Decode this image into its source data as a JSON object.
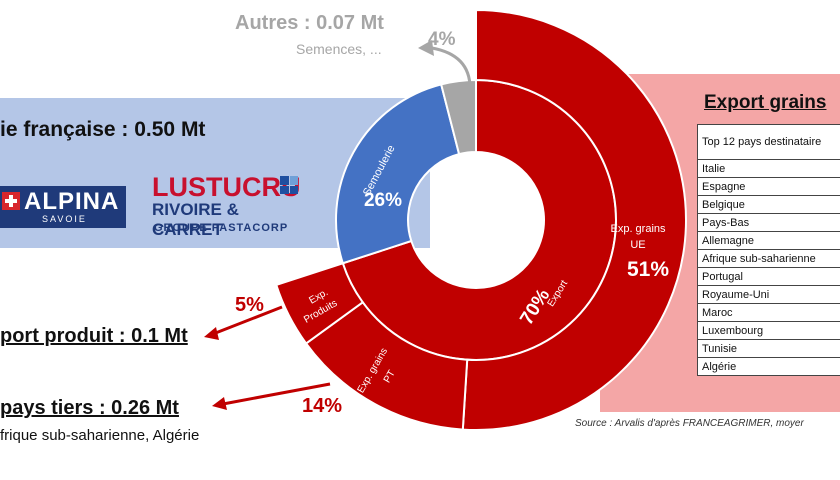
{
  "industry": {
    "label": "ie française : 0.50 Mt"
  },
  "brands": {
    "alpina": {
      "name": "ALPINA",
      "sub": "SAVOIE"
    },
    "lustucru": {
      "name": "LUSTUCRU",
      "line2": "RIVOIRE & CARRET",
      "line3": "GROUPE PASTACORP"
    }
  },
  "autres": {
    "label": "Autres : 0.07 Mt",
    "sub": "Semences, ..."
  },
  "exports": {
    "produit_label": "port produit : 0.1 Mt",
    "pays_tiers_label": "pays tiers : 0.26 Mt",
    "pays_tiers_sub": "frique sub-saharienne, Algérie"
  },
  "export_grains_panel": {
    "title": "Export grains",
    "table_header": "Top 12 pays destinataire",
    "countries": [
      "Italie",
      "Espagne",
      "Belgique",
      "Pays-Bas",
      "Allemagne",
      "Afrique sub-saharienne",
      "Portugal",
      "Royaume-Uni",
      "Maroc",
      "Luxembourg",
      "Tunisie",
      "Algérie"
    ]
  },
  "source": "Source : Arvalis d'après FRANCEAGRIMER, moyer",
  "colors": {
    "export": "#c00000",
    "semoulerie": "#4472c4",
    "autres": "#a6a6a6",
    "blue_band": "#b4c6e7",
    "pink_band": "#f4a6a6"
  },
  "chart_data": {
    "type": "pie",
    "subtype": "sunburst",
    "inner_ring": [
      {
        "label": "Export",
        "value": 70,
        "display": "70%"
      },
      {
        "label": "Semoulerie",
        "value": 26,
        "display": "26%"
      },
      {
        "label": "Autres",
        "value": 4,
        "display": "4%"
      }
    ],
    "outer_ring": [
      {
        "label": "Exp. grains UE",
        "value": 51,
        "display": "51%"
      },
      {
        "label": "Exp. grains PT",
        "value": 14,
        "display": "14%"
      },
      {
        "label": "Exp. Produits",
        "value": 5,
        "display": "5%"
      }
    ]
  }
}
